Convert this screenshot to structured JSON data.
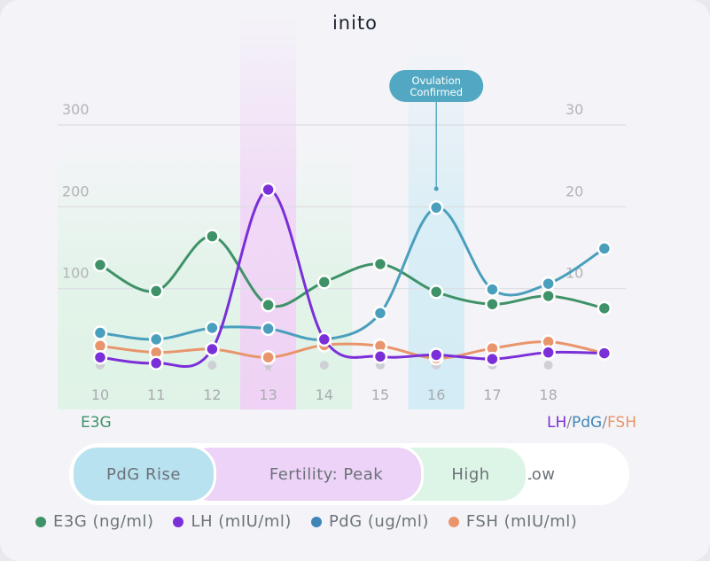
{
  "logo": "inito",
  "chart_data": {
    "type": "line",
    "x": [
      "10",
      "11",
      "12",
      "13",
      "14",
      "15",
      "16",
      "17",
      "18",
      ""
    ],
    "left_axis": {
      "label": "E3G",
      "ticks": [
        100,
        200,
        300
      ],
      "ylim": [
        0,
        300
      ]
    },
    "right_axis": {
      "label_parts": [
        "LH",
        "/",
        "PdG",
        "/",
        "FSH"
      ],
      "ticks": [
        10,
        20,
        30
      ],
      "ylim": [
        0,
        30
      ]
    },
    "grid": true,
    "series": [
      {
        "name": "E3G (ng/ml)",
        "axis": "left",
        "color": "#3f9268",
        "values": [
          129,
          97,
          164,
          80,
          108,
          130,
          96,
          81,
          91,
          76
        ]
      },
      {
        "name": "LH (mIU/ml)",
        "axis": "right",
        "color": "#7b2fd8",
        "values": [
          1.6,
          0.9,
          2.6,
          22.1,
          3.8,
          1.7,
          1.9,
          1.4,
          2.2,
          2.1
        ]
      },
      {
        "name": "PdG (ug/ml)",
        "axis": "right",
        "color": "#4a9fbd",
        "values": [
          4.6,
          3.8,
          5.2,
          5.1,
          3.8,
          7.0,
          19.9,
          9.9,
          10.6,
          14.9
        ]
      },
      {
        "name": "FSH (mIU/ml)",
        "axis": "right",
        "color": "#e9956c",
        "values": [
          3.0,
          2.2,
          2.6,
          1.6,
          3.1,
          3.0,
          1.5,
          2.7,
          3.5,
          2.1
        ]
      }
    ],
    "annotation": {
      "text_lines": [
        "Ovulation",
        "Confirmed"
      ],
      "day": "16"
    },
    "phase_bands": [
      {
        "days": [
          "10",
          "11",
          "12"
        ],
        "phase": "High",
        "color": "#dff3e6"
      },
      {
        "days": [
          "13"
        ],
        "phase": "Peak",
        "color": "#efd2f5"
      },
      {
        "days": [
          "14"
        ],
        "phase": "High",
        "color": "#dff3e6"
      },
      {
        "days": [
          "16"
        ],
        "phase": "PdG Rise",
        "color": "#d3ecf5"
      }
    ],
    "star_day": "13"
  },
  "phases": [
    {
      "label": "PdG Rise",
      "color": "#b8e2ef"
    },
    {
      "label": "Fertility: Peak",
      "color": "#edd3f7"
    },
    {
      "label": "High",
      "color": "#ddf5e6"
    },
    {
      "label": "Low",
      "color": "#ffffff"
    }
  ]
}
